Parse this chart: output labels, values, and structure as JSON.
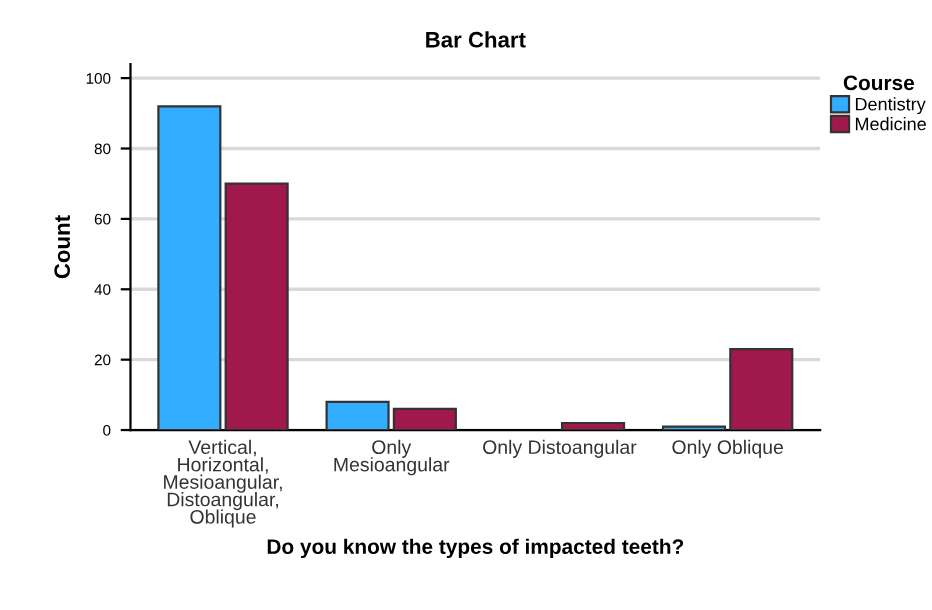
{
  "chart_data": {
    "type": "bar",
    "title": "Bar Chart",
    "xlabel": "Do you know the types of impacted teeth?",
    "ylabel": "Count",
    "legend_title": "Course",
    "categories": [
      "Vertical,\nHorizontal,\nMesioangular,\nDistoangular,\nOblique",
      "Only\nMesioangular",
      "Only Distoangular",
      "Only Oblique"
    ],
    "series": [
      {
        "name": "Dentistry",
        "color": "#33adff",
        "values": [
          92,
          8,
          null,
          1
        ]
      },
      {
        "name": "Medicine",
        "color": "#a0184c",
        "values": [
          70,
          6,
          2,
          23
        ]
      }
    ],
    "ylim": [
      0,
      104
    ],
    "yticks": [
      0,
      20,
      40,
      60,
      80,
      100
    ],
    "grid": "y",
    "legend": "top right"
  }
}
